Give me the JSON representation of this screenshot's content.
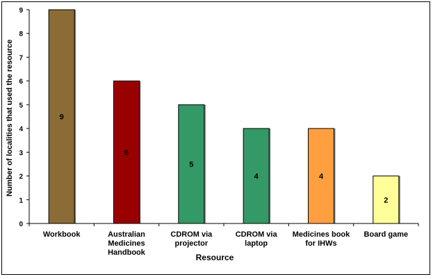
{
  "chart_data": {
    "type": "bar",
    "title": "",
    "xlabel": "Resource",
    "ylabel": "Number of localities that used the resource",
    "ylim": [
      0,
      9
    ],
    "yticks": [
      0,
      1,
      2,
      3,
      4,
      5,
      6,
      7,
      8,
      9
    ],
    "grid": false,
    "legend": "none",
    "categories": [
      [
        "Workbook"
      ],
      [
        "Australian",
        "Medicines",
        "Handbook"
      ],
      [
        "CDROM via",
        "projector"
      ],
      [
        "CDROM via",
        "laptop"
      ],
      [
        "Medicines book",
        "for IHWs"
      ],
      [
        "Board game"
      ]
    ],
    "values": [
      9,
      6,
      5,
      4,
      4,
      2
    ],
    "data_labels": [
      "9",
      "6",
      "5",
      "4",
      "4",
      "2"
    ],
    "colors": [
      "#8b6b36",
      "#990000",
      "#339966",
      "#339966",
      "#ff9f40",
      "#ffff99"
    ]
  }
}
